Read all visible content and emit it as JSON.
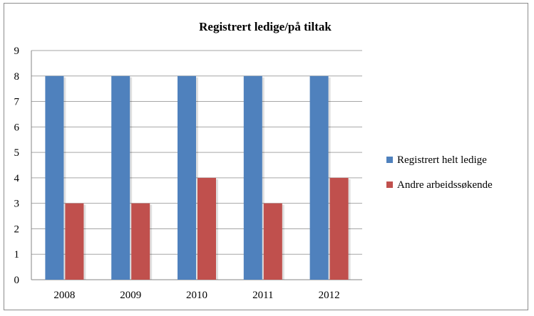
{
  "chart_data": {
    "type": "bar",
    "title": "Registrert ledige/på tiltak",
    "xlabel": "",
    "ylabel": "",
    "categories": [
      "2008",
      "2009",
      "2010",
      "2011",
      "2012"
    ],
    "series": [
      {
        "name": "Registrert helt ledige",
        "values": [
          8,
          8,
          8,
          8,
          8
        ],
        "color": "#4f81bd"
      },
      {
        "name": "Andre arbeidssøkende",
        "values": [
          3,
          3,
          4,
          3,
          4
        ],
        "color": "#c0504d"
      }
    ],
    "ylim": [
      0,
      9
    ],
    "yticks": [
      "0",
      "1",
      "2",
      "3",
      "4",
      "5",
      "6",
      "7",
      "8",
      "9"
    ],
    "grid": true,
    "legend_position": "right"
  }
}
